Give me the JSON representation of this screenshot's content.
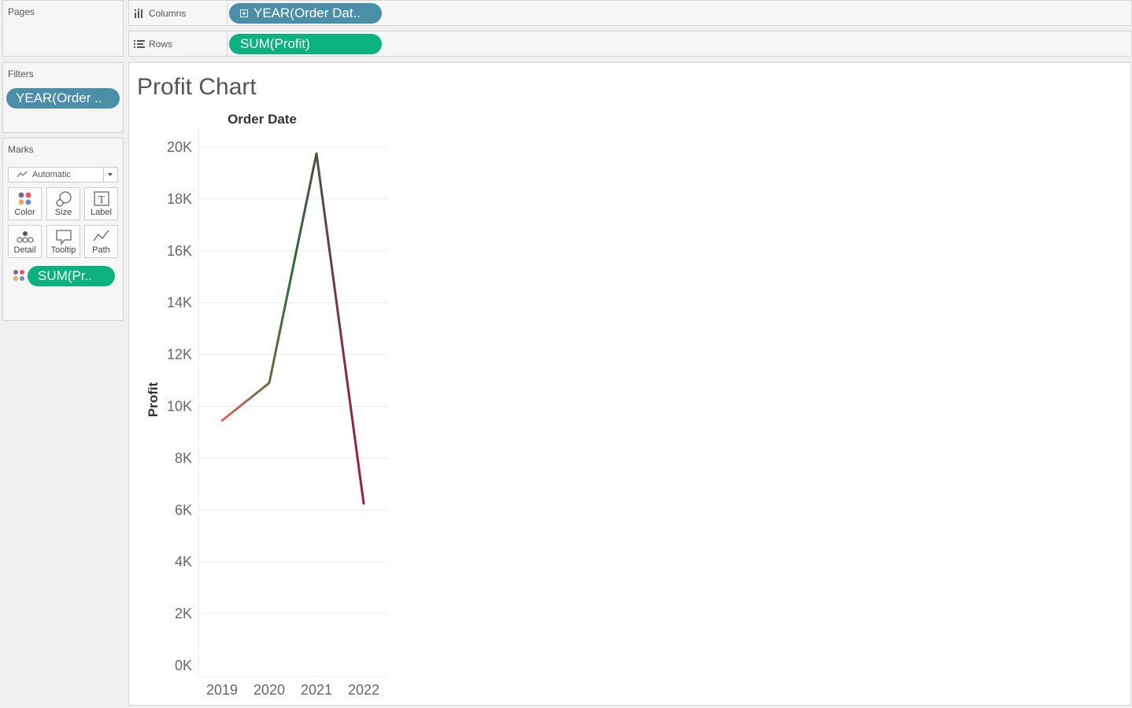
{
  "pages_card": {
    "title": "Pages"
  },
  "filters_card": {
    "title": "Filters",
    "pills": [
      {
        "label": "YEAR(Order .."
      }
    ]
  },
  "marks_card": {
    "title": "Marks",
    "mark_type": "Automatic",
    "buttons": [
      {
        "label": "Color",
        "icon": "color-icon"
      },
      {
        "label": "Size",
        "icon": "size-icon"
      },
      {
        "label": "Label",
        "icon": "label-icon"
      },
      {
        "label": "Detail",
        "icon": "detail-icon"
      },
      {
        "label": "Tooltip",
        "icon": "tooltip-icon"
      },
      {
        "label": "Path",
        "icon": "path-icon"
      }
    ],
    "field_pill": {
      "label": "SUM(Pr..",
      "icon": "color-dots-icon"
    }
  },
  "shelves": {
    "columns": {
      "label": "Columns",
      "pill": "YEAR(Order Dat..",
      "icon": "columns-icon"
    },
    "rows": {
      "label": "Rows",
      "pill": "SUM(Profit)",
      "icon": "rows-icon"
    }
  },
  "sheet": {
    "title": "Profit Chart"
  },
  "colors": {
    "dimension_pill": "#4a8ea8",
    "measure_pill": "#0bb280",
    "line_low": "#e8645a",
    "line_mid": "#2b6b3a",
    "line_end": "#a0174a"
  },
  "chart_data": {
    "type": "line",
    "title": "Profit Chart",
    "header": "Order Date",
    "xlabel": "",
    "ylabel": "Profit",
    "categories": [
      "2019",
      "2020",
      "2021",
      "2022"
    ],
    "series": [
      {
        "values": [
          9450,
          10900,
          19750,
          6250
        ]
      }
    ],
    "ylim": [
      0,
      20000
    ],
    "yticks": [
      0,
      2000,
      4000,
      6000,
      8000,
      10000,
      12000,
      14000,
      16000,
      18000,
      20000
    ],
    "ytick_labels": [
      "0K",
      "2K",
      "4K",
      "6K",
      "8K",
      "10K",
      "12K",
      "14K",
      "16K",
      "18K",
      "20K"
    ],
    "grid": true,
    "color_encoding": "SUM(Profit) diverging red-green"
  }
}
